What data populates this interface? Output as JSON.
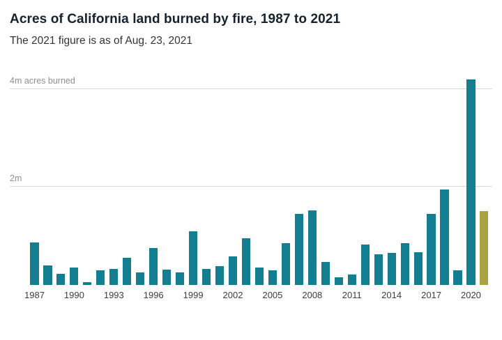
{
  "header": {
    "title": "Acres of California land burned by fire, 1987 to 2021",
    "subtitle": "The 2021 figure is as of Aug. 23, 2021"
  },
  "chart_data": {
    "type": "bar",
    "title": "Acres of California land burned by fire, 1987 to 2021",
    "subtitle": "The 2021 figure is as of Aug. 23, 2021",
    "unit": "million acres burned",
    "categories": [
      "1987",
      "1988",
      "1989",
      "1990",
      "1991",
      "1992",
      "1993",
      "1994",
      "1995",
      "1996",
      "1997",
      "1998",
      "1999",
      "2000",
      "2001",
      "2002",
      "2003",
      "2004",
      "2005",
      "2006",
      "2007",
      "2008",
      "2009",
      "2010",
      "2011",
      "2012",
      "2013",
      "2014",
      "2015",
      "2016",
      "2017",
      "2018",
      "2019",
      "2020",
      "2021"
    ],
    "values": [
      0.87,
      0.4,
      0.23,
      0.35,
      0.06,
      0.3,
      0.33,
      0.55,
      0.26,
      0.76,
      0.31,
      0.25,
      1.1,
      0.33,
      0.39,
      0.59,
      0.95,
      0.35,
      0.3,
      0.85,
      1.45,
      1.52,
      0.47,
      0.15,
      0.22,
      0.82,
      0.63,
      0.65,
      0.85,
      0.67,
      1.45,
      1.95,
      0.3,
      4.2,
      1.5
    ],
    "x_tick_labels": [
      "1987",
      "1990",
      "1993",
      "1996",
      "1999",
      "2002",
      "2005",
      "2008",
      "2011",
      "2014",
      "2017",
      "2020"
    ],
    "y_ticks": [
      {
        "value": 2,
        "label": "2m"
      },
      {
        "value": 4,
        "label": "4m acres burned"
      }
    ],
    "ylim": [
      0,
      4.35
    ],
    "grid": true,
    "legend": "none",
    "bar_color": "#137e8f",
    "highlight_color": "#a8a342",
    "highlight_category": "2021"
  }
}
